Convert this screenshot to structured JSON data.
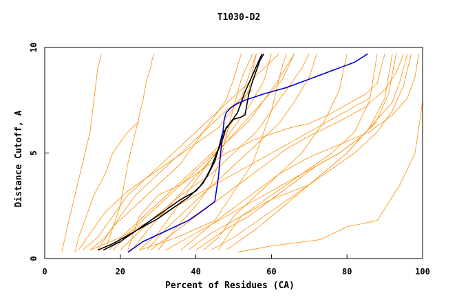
{
  "chart_data": {
    "type": "line",
    "title": "T1030-D2",
    "xlabel": "Percent of Residues (CA)",
    "ylabel": "Distance Cutoff, A",
    "xlim": [
      0,
      100
    ],
    "ylim": [
      0,
      10
    ],
    "x_ticks": [
      0,
      20,
      40,
      60,
      80,
      100
    ],
    "y_ticks": [
      0,
      5,
      10
    ],
    "x_tick_labels": [
      "0",
      "20",
      "40",
      "60",
      "80",
      "100"
    ],
    "y_tick_labels": [
      "0",
      "5",
      "10"
    ],
    "grid": false,
    "legend": "none",
    "colors": {
      "background_models": "#ff8c00",
      "highlight_1": "#000000",
      "highlight_2": "#000000",
      "highlight_3": "#0000cc"
    },
    "series": [
      {
        "color": "#000000",
        "x": [
          14,
          18,
          22,
          26,
          30,
          34,
          38,
          41,
          43,
          45,
          46,
          47,
          49,
          51,
          52,
          53,
          54,
          55,
          56,
          57,
          57.5
        ],
        "y": [
          0.4,
          0.7,
          1.1,
          1.5,
          1.9,
          2.4,
          2.9,
          3.4,
          3.9,
          4.6,
          5.2,
          5.9,
          6.4,
          6.9,
          7.4,
          7.9,
          8.3,
          8.7,
          9.1,
          9.5,
          9.7
        ]
      },
      {
        "color": "#000000",
        "x": [
          15.5,
          20,
          24,
          28,
          32,
          36,
          40,
          42,
          44,
          45.5,
          47,
          48,
          50,
          52,
          53,
          53.5,
          54,
          55,
          56,
          57,
          58
        ],
        "y": [
          0.4,
          0.8,
          1.3,
          1.8,
          2.3,
          2.8,
          3.2,
          3.6,
          4.3,
          5.0,
          5.6,
          6.2,
          6.6,
          6.7,
          6.8,
          7.3,
          7.8,
          8.4,
          8.9,
          9.4,
          9.7
        ]
      },
      {
        "color": "#0000cc",
        "x": [
          22,
          26,
          32,
          38,
          42,
          45,
          45.5,
          46,
          46.5,
          47,
          47.5,
          48,
          49,
          50.5,
          53,
          58,
          64,
          70,
          76,
          82,
          85.5
        ],
        "y": [
          0.3,
          0.8,
          1.3,
          1.8,
          2.3,
          2.7,
          3.3,
          3.9,
          4.9,
          5.7,
          6.6,
          6.9,
          7.1,
          7.3,
          7.5,
          7.8,
          8.1,
          8.5,
          8.9,
          9.3,
          9.7
        ]
      },
      {
        "color": "#ff8c00",
        "x": [
          4.5,
          6,
          8,
          10,
          12,
          13,
          14,
          15
        ],
        "y": [
          0.3,
          1.5,
          3.0,
          4.5,
          6.0,
          7.5,
          9.0,
          9.7
        ]
      },
      {
        "color": "#ff8c00",
        "x": [
          51,
          60,
          73,
          80,
          88,
          94,
          98,
          99.5,
          100
        ],
        "y": [
          0.3,
          0.6,
          0.9,
          1.5,
          1.8,
          3.5,
          5.0,
          6.8,
          7.5
        ]
      },
      {
        "color": "#ff8c00",
        "x": [
          16,
          20,
          22,
          24,
          26,
          27,
          28,
          28.5,
          29
        ],
        "y": [
          0.4,
          2.5,
          4.5,
          6.0,
          7.5,
          8.5,
          9.0,
          9.5,
          9.7
        ]
      },
      {
        "color": "#ff8c00",
        "x": [
          8,
          9,
          11,
          13,
          16,
          18,
          22,
          25
        ],
        "y": [
          0.3,
          1.0,
          2.0,
          3.0,
          4.0,
          5.0,
          6.0,
          6.5
        ]
      },
      {
        "color": "#ff8c00",
        "x": [
          25,
          35,
          45,
          55,
          60,
          62,
          63,
          64
        ],
        "y": [
          0.4,
          1.0,
          1.8,
          4.5,
          7.0,
          8.5,
          9.2,
          9.7
        ]
      },
      {
        "color": "#ff8c00",
        "x": [
          46,
          48,
          52,
          60,
          70,
          80,
          85,
          88
        ],
        "y": [
          0.4,
          1.0,
          2.0,
          2.8,
          3.5,
          5.0,
          6.0,
          6.5
        ]
      },
      {
        "color": "#ff8c00",
        "x": [
          30,
          35,
          40,
          44,
          47,
          49,
          52,
          55
        ],
        "y": [
          0.4,
          1.5,
          2.5,
          3.5,
          5.0,
          6.5,
          8.5,
          9.7
        ]
      },
      {
        "color": "#ff8c00",
        "x": [
          22,
          25,
          30,
          36,
          40,
          44,
          48,
          52,
          55,
          60,
          65,
          70,
          75,
          80,
          85,
          88,
          90
        ],
        "y": [
          0.4,
          2.0,
          3.0,
          3.5,
          4.0,
          4.5,
          5.0,
          5.3,
          5.6,
          5.9,
          6.2,
          6.4,
          6.8,
          7.3,
          7.8,
          8.3,
          9.7
        ]
      },
      {
        "color": "#ff8c00",
        "x": [
          12,
          16,
          20,
          24,
          30,
          36,
          42,
          48,
          55
        ],
        "y": [
          0.4,
          1.0,
          2.0,
          3.0,
          4.0,
          5.0,
          6.0,
          7.0,
          8.0
        ]
      },
      {
        "color": "#ff8c00",
        "x": [
          28,
          34,
          40,
          46,
          52,
          58,
          64,
          70,
          78,
          85,
          90,
          93,
          95
        ],
        "y": [
          0.4,
          1.2,
          2.0,
          2.8,
          3.6,
          4.4,
          5.2,
          5.8,
          6.5,
          7.2,
          8.0,
          8.8,
          9.7
        ]
      },
      {
        "color": "#ff8c00",
        "x": [
          18,
          24,
          30,
          36,
          42,
          48,
          54,
          58,
          62,
          66
        ],
        "y": [
          0.4,
          1.5,
          2.5,
          3.5,
          4.5,
          5.5,
          6.5,
          7.5,
          8.5,
          9.7
        ]
      },
      {
        "color": "#ff8c00",
        "x": [
          36,
          40,
          44,
          50,
          56,
          62,
          70,
          78,
          86,
          92,
          96,
          98,
          99
        ],
        "y": [
          0.4,
          1.0,
          1.6,
          2.4,
          3.2,
          4.0,
          4.8,
          5.4,
          6.0,
          6.8,
          7.6,
          8.6,
          9.7
        ]
      },
      {
        "color": "#ff8c00",
        "x": [
          10,
          14,
          18,
          22,
          28,
          34,
          40,
          46,
          52,
          58,
          62
        ],
        "y": [
          0.4,
          1.0,
          2.0,
          3.0,
          4.0,
          5.0,
          6.0,
          7.0,
          8.0,
          9.0,
          9.7
        ]
      },
      {
        "color": "#ff8c00",
        "x": [
          40,
          44,
          48,
          54,
          60,
          66,
          72,
          78,
          84,
          88,
          91,
          93
        ],
        "y": [
          0.4,
          0.9,
          1.4,
          2.0,
          2.8,
          3.6,
          4.4,
          5.0,
          5.8,
          6.6,
          7.8,
          9.7
        ]
      },
      {
        "color": "#ff8c00",
        "x": [
          20,
          28,
          36,
          44,
          50,
          56,
          60,
          64,
          68,
          70
        ],
        "y": [
          0.4,
          1.8,
          3.0,
          4.0,
          5.0,
          6.0,
          7.0,
          8.0,
          9.0,
          9.7
        ]
      },
      {
        "color": "#ff8c00",
        "x": [
          14,
          18,
          24,
          30,
          36,
          40,
          44,
          48,
          50,
          52
        ],
        "y": [
          0.4,
          1.5,
          2.5,
          3.5,
          4.5,
          5.5,
          6.5,
          7.5,
          8.5,
          9.7
        ]
      },
      {
        "color": "#ff8c00",
        "x": [
          32,
          38,
          46,
          54,
          62,
          70,
          78,
          84,
          88,
          92,
          94,
          96
        ],
        "y": [
          0.4,
          1.0,
          1.8,
          2.6,
          3.4,
          4.2,
          5.0,
          5.8,
          6.6,
          7.4,
          8.4,
          9.7
        ]
      },
      {
        "color": "#ff8c00",
        "x": [
          25,
          30,
          34,
          38,
          42,
          46,
          50,
          54,
          58,
          60
        ],
        "y": [
          0.4,
          1.2,
          2.2,
          3.2,
          4.2,
          5.2,
          6.2,
          7.2,
          8.4,
          9.7
        ]
      },
      {
        "color": "#ff8c00",
        "x": [
          9,
          12,
          16,
          22,
          30,
          38,
          46,
          52,
          56
        ],
        "y": [
          0.4,
          1.2,
          2.2,
          3.2,
          4.2,
          5.2,
          6.2,
          7.6,
          9.7
        ]
      },
      {
        "color": "#ff8c00",
        "x": [
          44,
          50,
          58,
          66,
          74,
          82,
          88,
          92,
          95,
          97
        ],
        "y": [
          0.4,
          1.0,
          2.0,
          3.0,
          4.0,
          5.0,
          6.0,
          7.0,
          8.2,
          9.7
        ]
      },
      {
        "color": "#ff8c00",
        "x": [
          27,
          32,
          38,
          44,
          50,
          56,
          62,
          66,
          70,
          72
        ],
        "y": [
          0.4,
          1.4,
          2.4,
          3.4,
          4.4,
          5.4,
          6.4,
          7.4,
          8.6,
          9.7
        ]
      },
      {
        "color": "#ff8c00",
        "x": [
          17,
          22,
          28,
          34,
          40,
          46,
          50,
          54,
          56
        ],
        "y": [
          0.4,
          1.3,
          2.3,
          3.3,
          4.3,
          5.3,
          6.6,
          8.0,
          9.7
        ]
      },
      {
        "color": "#ff8c00",
        "x": [
          38,
          44,
          52,
          60,
          68,
          76,
          82,
          86,
          88
        ],
        "y": [
          0.4,
          1.2,
          2.0,
          3.0,
          4.0,
          5.0,
          6.0,
          7.5,
          9.7
        ]
      },
      {
        "color": "#ff8c00",
        "x": [
          23,
          28,
          33,
          38,
          43,
          48,
          53,
          58,
          63,
          66
        ],
        "y": [
          0.4,
          1.5,
          2.5,
          3.5,
          4.5,
          5.5,
          6.5,
          7.5,
          8.5,
          9.7
        ]
      },
      {
        "color": "#ff8c00",
        "x": [
          48,
          56,
          64,
          72,
          80,
          86,
          90,
          92
        ],
        "y": [
          0.4,
          1.4,
          2.6,
          3.8,
          5.0,
          6.2,
          7.6,
          9.7
        ]
      },
      {
        "color": "#ff8c00",
        "x": [
          12,
          20,
          30,
          40,
          50,
          60,
          70,
          80,
          86
        ],
        "y": [
          0.4,
          1.0,
          2.0,
          3.0,
          4.0,
          5.0,
          6.0,
          7.0,
          7.6
        ]
      },
      {
        "color": "#ff8c00",
        "x": [
          42,
          46,
          50,
          56,
          62,
          68,
          74,
          78,
          80
        ],
        "y": [
          0.4,
          1.0,
          2.0,
          3.0,
          4.0,
          5.0,
          6.5,
          8.0,
          9.7
        ]
      }
    ]
  }
}
